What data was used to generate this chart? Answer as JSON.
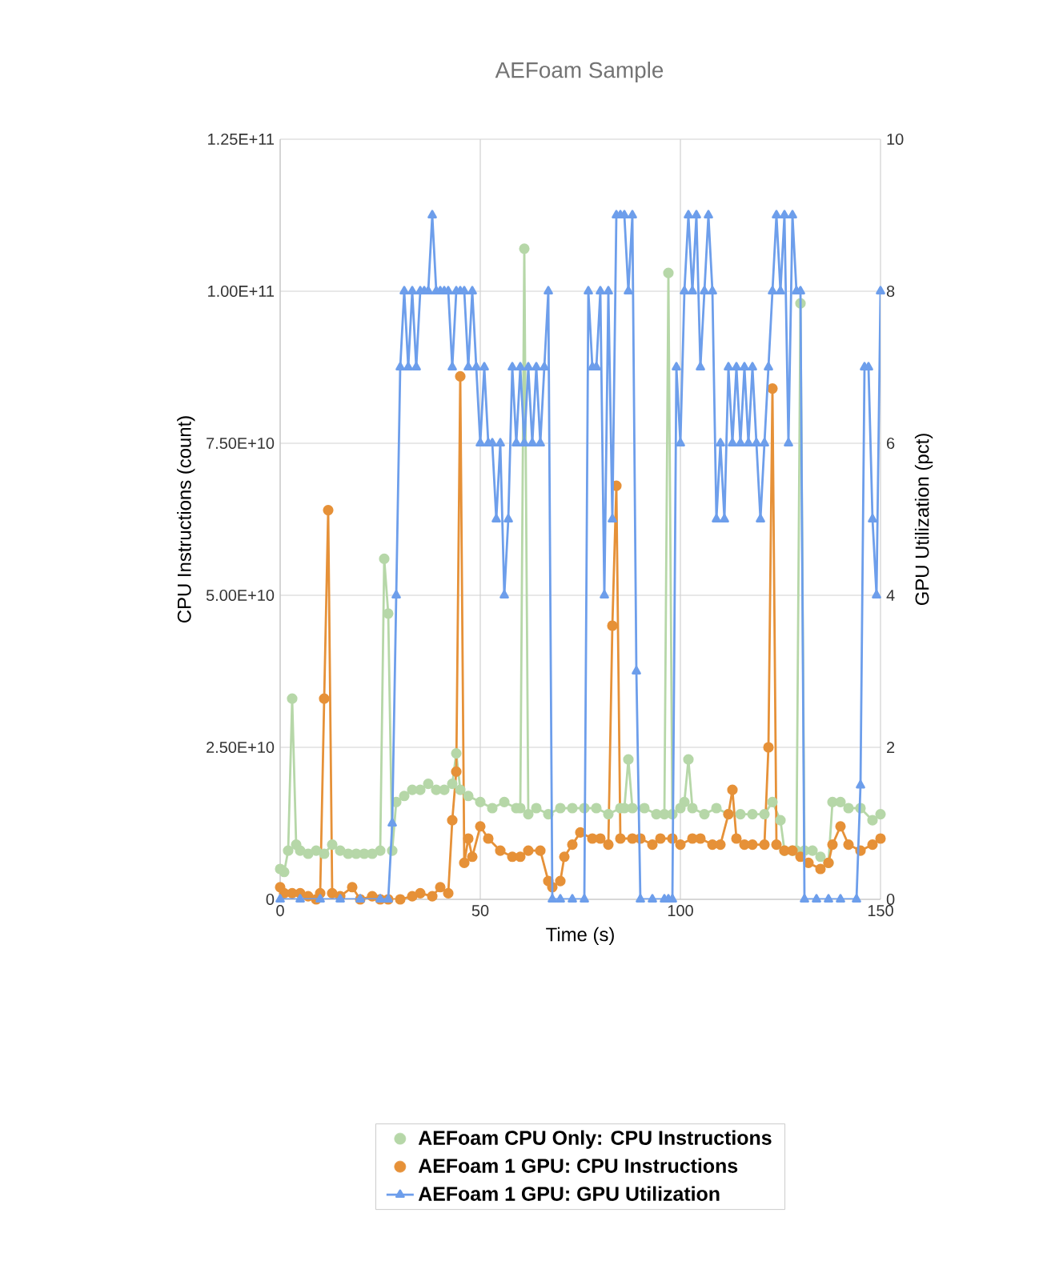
{
  "chart_data": {
    "type": "line",
    "title": "AEFoam Sample",
    "xlabel": "Time (s)",
    "ylabel": "CPU Instructions (count)",
    "y2label": "GPU Utilization (pct)",
    "xlim": [
      0,
      150
    ],
    "xticks": [
      0,
      50,
      100,
      150
    ],
    "ylim": [
      0,
      125000000000.0
    ],
    "yticks": [
      0,
      {
        "value": 25000000000.0,
        "label": "2.50E+10"
      },
      {
        "value": 50000000000.0,
        "label": "5.00E+10"
      },
      {
        "value": 75000000000.0,
        "label": "7.50E+10"
      },
      {
        "value": 100000000000.0,
        "label": "1.00E+11"
      },
      {
        "value": 125000000000.0,
        "label": "1.25E+11"
      }
    ],
    "y2lim": [
      0,
      10
    ],
    "y2ticks": [
      0,
      2,
      4,
      6,
      8,
      10
    ],
    "grid": true,
    "legend": "bottom",
    "series": [
      {
        "name": "AEFoam CPU Only: CPU Instructions",
        "color": "#b6d7a8",
        "marker": "circle",
        "x": [
          0,
          1,
          2,
          3,
          4,
          5,
          7,
          9,
          11,
          13,
          15,
          17,
          19,
          21,
          23,
          25,
          26,
          27,
          28,
          29,
          31,
          33,
          35,
          37,
          39,
          41,
          43,
          44,
          45,
          47,
          50,
          53,
          56,
          59,
          60,
          61,
          62,
          64,
          67,
          70,
          73,
          76,
          79,
          82,
          85,
          86,
          87,
          88,
          91,
          94,
          96,
          97,
          98,
          100,
          101,
          102,
          103,
          106,
          109,
          112,
          115,
          118,
          121,
          123,
          125,
          126,
          128,
          129,
          130,
          131,
          133,
          135,
          137,
          138,
          140,
          142,
          145,
          148,
          150
        ],
        "values": [
          5000000000.0,
          4500000000.0,
          8000000000.0,
          33000000000.0,
          9000000000.0,
          8000000000.0,
          7500000000.0,
          8000000000.0,
          7500000000.0,
          9000000000.0,
          8000000000.0,
          7500000000.0,
          7500000000.0,
          7500000000.0,
          7500000000.0,
          8000000000.0,
          56000000000.0,
          47000000000.0,
          8000000000.0,
          16000000000.0,
          17000000000.0,
          18000000000.0,
          18000000000.0,
          19000000000.0,
          18000000000.0,
          18000000000.0,
          19000000000.0,
          24000000000.0,
          18000000000.0,
          17000000000.0,
          16000000000.0,
          15000000000.0,
          16000000000.0,
          15000000000.0,
          15000000000.0,
          107000000000.0,
          14000000000.0,
          15000000000.0,
          14000000000.0,
          15000000000.0,
          15000000000.0,
          15000000000.0,
          15000000000.0,
          14000000000.0,
          15000000000.0,
          15000000000.0,
          23000000000.0,
          15000000000.0,
          15000000000.0,
          14000000000.0,
          14000000000.0,
          103000000000.0,
          14000000000.0,
          15000000000.0,
          16000000000.0,
          23000000000.0,
          15000000000.0,
          14000000000.0,
          15000000000.0,
          14000000000.0,
          14000000000.0,
          14000000000.0,
          14000000000.0,
          16000000000.0,
          13000000000.0,
          8000000000.0,
          8000000000.0,
          8000000000.0,
          98000000000.0,
          8000000000.0,
          8000000000.0,
          7000000000.0,
          6000000000.0,
          16000000000.0,
          16000000000.0,
          15000000000.0,
          15000000000.0,
          13000000000.0,
          14000000000.0
        ]
      },
      {
        "name": "AEFoam 1 GPU: CPU Instructions",
        "color": "#e69138",
        "marker": "circle",
        "x": [
          0,
          1,
          3,
          5,
          7,
          9,
          10,
          11,
          12,
          13,
          15,
          18,
          20,
          23,
          25,
          27,
          30,
          33,
          35,
          38,
          40,
          42,
          43,
          44,
          45,
          46,
          47,
          48,
          50,
          52,
          55,
          58,
          60,
          62,
          65,
          67,
          68,
          70,
          71,
          73,
          75,
          78,
          80,
          82,
          83,
          84,
          85,
          88,
          90,
          93,
          95,
          98,
          100,
          103,
          105,
          108,
          110,
          112,
          113,
          114,
          116,
          118,
          121,
          122,
          123,
          124,
          126,
          128,
          130,
          132,
          135,
          137,
          138,
          140,
          142,
          145,
          148,
          150
        ],
        "values": [
          2000000000.0,
          1000000000.0,
          1000000000.0,
          1000000000.0,
          500000000.0,
          0,
          1000000000.0,
          33000000000.0,
          64000000000.0,
          1000000000.0,
          500000000.0,
          2000000000.0,
          0,
          500000000.0,
          0,
          0,
          0,
          500000000.0,
          1000000000.0,
          500000000.0,
          2000000000.0,
          1000000000.0,
          13000000000.0,
          21000000000.0,
          86000000000.0,
          6000000000.0,
          10000000000.0,
          7000000000.0,
          12000000000.0,
          10000000000.0,
          8000000000.0,
          7000000000.0,
          7000000000.0,
          8000000000.0,
          8000000000.0,
          3000000000.0,
          2000000000.0,
          3000000000.0,
          7000000000.0,
          9000000000.0,
          11000000000.0,
          10000000000.0,
          10000000000.0,
          9000000000.0,
          45000000000.0,
          68000000000.0,
          10000000000.0,
          10000000000.0,
          10000000000.0,
          9000000000.0,
          10000000000.0,
          10000000000.0,
          9000000000.0,
          10000000000.0,
          10000000000.0,
          9000000000.0,
          9000000000.0,
          14000000000.0,
          18000000000.0,
          10000000000.0,
          9000000000.0,
          9000000000.0,
          9000000000.0,
          25000000000.0,
          84000000000.0,
          9000000000.0,
          8000000000.0,
          8000000000.0,
          7000000000.0,
          6000000000.0,
          5000000000.0,
          6000000000.0,
          9000000000.0,
          12000000000.0,
          9000000000.0,
          8000000000.0,
          9000000000.0,
          10000000000.0
        ]
      },
      {
        "name": "AEFoam 1 GPU: GPU Utilization",
        "color": "#6d9eeb",
        "marker": "triangle",
        "axis": "y2",
        "x": [
          0,
          5,
          10,
          15,
          20,
          25,
          27,
          28,
          29,
          30,
          31,
          32,
          33,
          34,
          35,
          36,
          37,
          38,
          39,
          40,
          41,
          42,
          43,
          44,
          45,
          46,
          47,
          48,
          49,
          50,
          51,
          52,
          53,
          54,
          55,
          56,
          57,
          58,
          59,
          60,
          61,
          62,
          63,
          64,
          65,
          66,
          67,
          68,
          70,
          73,
          76,
          77,
          78,
          79,
          80,
          81,
          82,
          83,
          84,
          85,
          86,
          87,
          88,
          89,
          90,
          93,
          96,
          97,
          98,
          99,
          100,
          101,
          102,
          103,
          104,
          105,
          106,
          107,
          108,
          109,
          110,
          111,
          112,
          113,
          114,
          115,
          116,
          117,
          118,
          119,
          120,
          121,
          122,
          123,
          124,
          125,
          126,
          127,
          128,
          129,
          130,
          131,
          134,
          137,
          140,
          144,
          145,
          146,
          147,
          148,
          149,
          150
        ],
        "values": [
          0,
          0,
          0,
          0,
          0,
          0,
          0,
          1,
          4,
          7,
          8,
          7,
          8,
          7,
          8,
          8,
          8,
          9,
          8,
          8,
          8,
          8,
          7,
          8,
          8,
          8,
          7,
          8,
          7,
          6,
          7,
          6,
          6,
          5,
          6,
          4,
          5,
          7,
          6,
          7,
          6,
          7,
          6,
          7,
          6,
          7,
          8,
          0,
          0,
          0,
          0,
          8,
          7,
          7,
          8,
          4,
          8,
          5,
          9,
          9,
          9,
          8,
          9,
          3,
          0,
          0,
          0,
          0,
          0,
          7,
          6,
          8,
          9,
          8,
          9,
          7,
          8,
          9,
          8,
          5,
          6,
          5,
          7,
          6,
          7,
          6,
          7,
          6,
          7,
          6,
          5,
          6,
          7,
          8,
          9,
          8,
          9,
          6,
          9,
          8,
          8,
          0,
          0,
          0,
          0,
          0,
          1.5,
          7,
          7,
          5,
          4,
          8
        ]
      }
    ]
  }
}
